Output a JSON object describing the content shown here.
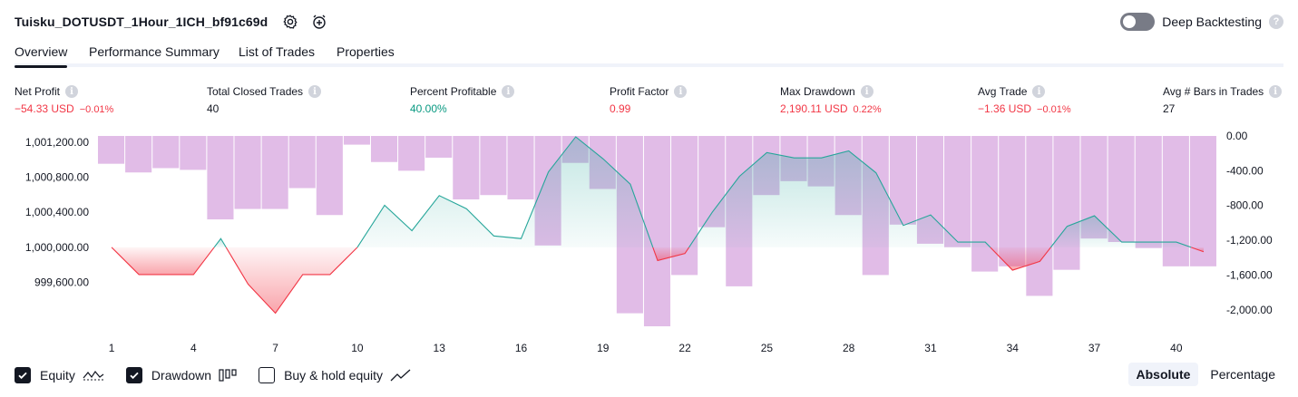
{
  "header": {
    "strategy_name": "Tuisku_DOTUSDT_1Hour_1ICH_bf91c69d",
    "settings_icon": "gear-icon",
    "alert_icon": "alarm-clock-plus-icon"
  },
  "deep_backtesting": {
    "label": "Deep Backtesting",
    "enabled": false,
    "help_icon": "question-icon",
    "help_glyph": "?"
  },
  "tabs": [
    {
      "label": "Overview",
      "active": true
    },
    {
      "label": "Performance Summary",
      "active": false
    },
    {
      "label": "List of Trades",
      "active": false
    },
    {
      "label": "Properties",
      "active": false
    }
  ],
  "info_glyph": "i",
  "stats": {
    "net_profit": {
      "label": "Net Profit",
      "value": "−54.33 USD",
      "pct": "−0.01%"
    },
    "total_closed_trades": {
      "label": "Total Closed Trades",
      "value": "40"
    },
    "percent_profitable": {
      "label": "Percent Profitable",
      "value": "40.00%"
    },
    "profit_factor": {
      "label": "Profit Factor",
      "value": "0.99"
    },
    "max_drawdown": {
      "label": "Max Drawdown",
      "value": "2,190.11 USD",
      "pct": "0.22%"
    },
    "avg_trade": {
      "label": "Avg Trade",
      "value": "−1.36 USD",
      "pct": "−0.01%"
    },
    "avg_bars": {
      "label": "Avg # Bars in Trades",
      "value": "27"
    }
  },
  "colors": {
    "profit": "#089981",
    "loss": "#f23645",
    "drawdown_bar": "#ce93d8",
    "equity_line_pos": "#26a69a",
    "equity_line_neg": "#f23645",
    "text": "#131722"
  },
  "chart_data": {
    "type": "line",
    "series": [
      {
        "name": "Equity",
        "axis": "left",
        "baseline": 1000000,
        "values": [
          1000000,
          999690,
          999690,
          999690,
          1000100,
          999580,
          999250,
          999690,
          999690,
          1000000,
          1000480,
          1000190,
          1000590,
          1000440,
          1000130,
          1000100,
          1000860,
          1001260,
          1001010,
          1000720,
          999850,
          999930,
          1000400,
          1000810,
          1001080,
          1001020,
          1001020,
          1001100,
          1000850,
          1000250,
          1000370,
          1000060,
          1000060,
          999740,
          999840,
          1000240,
          1000360,
          1000060,
          1000060,
          1000060,
          999950
        ]
      },
      {
        "name": "Drawdown",
        "axis": "right",
        "values": [
          -320,
          -420,
          -370,
          -390,
          -960,
          -840,
          -840,
          -600,
          -910,
          -100,
          -300,
          -400,
          -250,
          -730,
          -680,
          -730,
          -1260,
          -310,
          -610,
          -2040,
          -2190,
          -1600,
          -1050,
          -1730,
          -680,
          -520,
          -580,
          -910,
          -1600,
          -1020,
          -1240,
          -1280,
          -1560,
          -1500,
          -1840,
          -1540,
          -1180,
          -1220,
          -1290,
          -1500,
          -1500
        ]
      }
    ],
    "x_ticks": [
      "1",
      "4",
      "7",
      "10",
      "13",
      "16",
      "19",
      "22",
      "25",
      "28",
      "31",
      "34",
      "37",
      "40"
    ],
    "left_ticks": [
      "1,001,200.00",
      "1,000,800.00",
      "1,000,400.00",
      "1,000,000.00",
      "999,600.00"
    ],
    "left_tick_values": [
      1001200,
      1000800,
      1000400,
      1000000,
      999600
    ],
    "right_ticks": [
      "0.00",
      "-400.00",
      "-800.00",
      "-1,200.00",
      "-1,600.00",
      "-2,000.00"
    ],
    "right_tick_values": [
      0,
      -400,
      -800,
      -1200,
      -1600,
      -2000
    ],
    "x_range": [
      0.5,
      41.5
    ],
    "left_range": [
      999100,
      1001270
    ],
    "right_range": [
      -2190,
      0
    ]
  },
  "legend": {
    "equity": {
      "label": "Equity",
      "checked": true,
      "icon": "equity-line-icon"
    },
    "drawdown": {
      "label": "Drawdown",
      "checked": true,
      "icon": "drawdown-bars-icon"
    },
    "buy_hold": {
      "label": "Buy & hold equity",
      "checked": false,
      "icon": "buy-hold-line-icon"
    }
  },
  "modes": {
    "absolute": "Absolute",
    "percentage": "Percentage",
    "active": "Absolute"
  }
}
